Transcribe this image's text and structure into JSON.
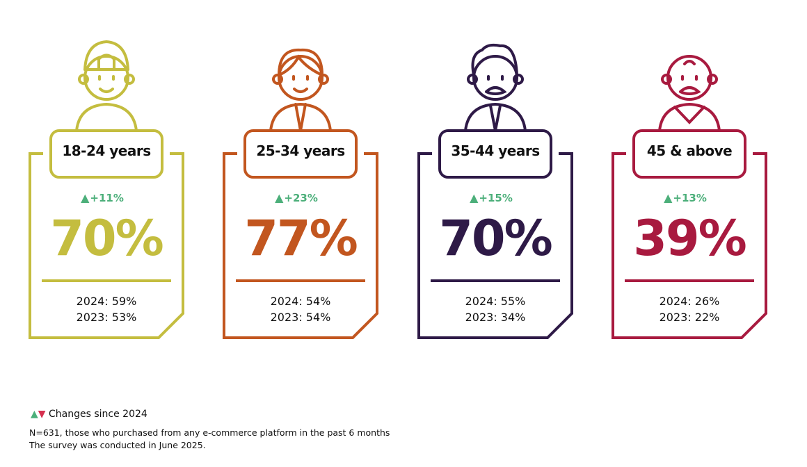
{
  "colors": {
    "up": "#4caf7a",
    "down": "#d6304f"
  },
  "chart_data": {
    "type": "table",
    "cards": [
      {
        "label": "18-24 years",
        "change": "+11%",
        "direction": "up",
        "value": "70%",
        "y2024": "2024: 59%",
        "y2023": "2023: 53%",
        "color": "#c4bd3f",
        "avatar": "young-man-cap-icon"
      },
      {
        "label": "25-34 years",
        "change": "+23%",
        "direction": "up",
        "value": "77%",
        "y2024": "2024: 54%",
        "y2023": "2023: 54%",
        "color": "#c2561f",
        "avatar": "man-icon"
      },
      {
        "label": "35-44 years",
        "change": "+15%",
        "direction": "up",
        "value": "70%",
        "y2024": "2024: 55%",
        "y2023": "2023: 34%",
        "color": "#2e1a47",
        "avatar": "man-mustache-icon"
      },
      {
        "label": "45 & above",
        "change": "+13%",
        "direction": "up",
        "value": "39%",
        "y2024": "2024: 26%",
        "y2023": "2023: 22%",
        "color": "#a81a3f",
        "avatar": "old-man-icon"
      }
    ]
  },
  "footer": {
    "legend": "Changes since 2024",
    "note1": "N=631, those who purchased from any e-commerce platform in the past 6 months",
    "note2": "The survey was conducted in June 2025."
  }
}
